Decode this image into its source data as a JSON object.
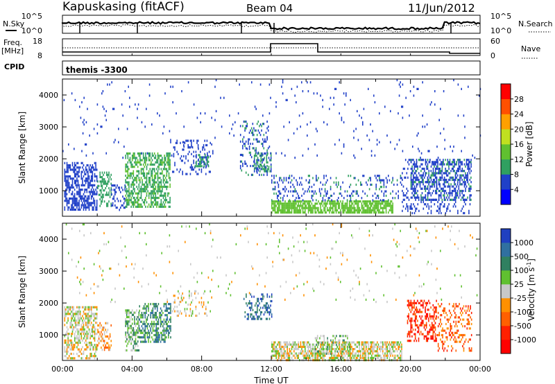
{
  "header": {
    "station": "Kapuskasing (fitACF)",
    "beam": "Beam 04",
    "date": "11/Jun/2012"
  },
  "top_panels": {
    "nsky_label": "N.Sky",
    "nsearch_label": "N.Search",
    "freq_label_1": "Freq.",
    "freq_label_2": "[MHz]",
    "nave_label": "Nave",
    "cpid_label": "CPID",
    "cpid_value": "themis -3300",
    "noise_ticks": [
      "10^5",
      "10^0"
    ],
    "freq_ticks": [
      "18",
      "8"
    ],
    "nave_ticks": [
      "60",
      "0"
    ]
  },
  "chart_data": [
    {
      "type": "heatmap",
      "title": "",
      "xlabel": "",
      "ylabel": "Slant Range [km]",
      "x_ticks": [
        "00:00",
        "04:00",
        "08:00",
        "12:00",
        "16:00",
        "20:00",
        "00:00"
      ],
      "y_ticks": [
        "1000",
        "2000",
        "3000",
        "4000"
      ],
      "ylim": [
        200,
        4500
      ],
      "colorbar": {
        "label": "Power [dB]",
        "ticks": [
          "4",
          "8",
          "12",
          "16",
          "20",
          "24",
          "28"
        ],
        "range": [
          0,
          32
        ],
        "colors": [
          "#0000ff",
          "#2040c8",
          "#30a060",
          "#60c030",
          "#c0e020",
          "#ffa000",
          "#ff5000",
          "#ff0000"
        ]
      },
      "regions": [
        {
          "t": [
            0.1,
            2.0
          ],
          "r": [
            400,
            1900
          ],
          "dens": 0.55,
          "value": 6
        },
        {
          "t": [
            2.0,
            2.8
          ],
          "r": [
            500,
            1600
          ],
          "dens": 0.35,
          "value": 10
        },
        {
          "t": [
            2.8,
            3.6
          ],
          "r": [
            400,
            1200
          ],
          "dens": 0.3,
          "value": 6
        },
        {
          "t": [
            3.6,
            6.2
          ],
          "r": [
            500,
            2200
          ],
          "dens": 0.55,
          "value": 11
        },
        {
          "t": [
            6.3,
            8.5
          ],
          "r": [
            1500,
            2600
          ],
          "dens": 0.18,
          "value": 6
        },
        {
          "t": [
            7.6,
            8.4
          ],
          "r": [
            1800,
            2150
          ],
          "dens": 0.6,
          "value": 8
        },
        {
          "t": [
            10.2,
            11.8
          ],
          "r": [
            1500,
            3200
          ],
          "dens": 0.2,
          "value": 7
        },
        {
          "t": [
            11.0,
            12.0
          ],
          "r": [
            1600,
            2200
          ],
          "dens": 0.55,
          "value": 8
        },
        {
          "t": [
            12.0,
            19.0
          ],
          "r": [
            300,
            700
          ],
          "dens": 0.75,
          "value": 13
        },
        {
          "t": [
            12.0,
            19.5
          ],
          "r": [
            700,
            1500
          ],
          "dens": 0.2,
          "value": 7
        },
        {
          "t": [
            19.5,
            23.5
          ],
          "r": [
            300,
            2000
          ],
          "dens": 0.2,
          "value": 6
        },
        {
          "t": [
            20.0,
            23.5
          ],
          "r": [
            700,
            2000
          ],
          "dens": 0.35,
          "value": 7
        },
        {
          "t": [
            0.0,
            24.0
          ],
          "r": [
            2000,
            4500
          ],
          "dens": 0.02,
          "value": 6
        }
      ]
    },
    {
      "type": "heatmap",
      "title": "",
      "xlabel": "Time UT",
      "ylabel": "Slant Range [km]",
      "x_ticks": [
        "00:00",
        "04:00",
        "08:00",
        "12:00",
        "16:00",
        "20:00",
        "00:00"
      ],
      "y_ticks": [
        "1000",
        "2000",
        "3000",
        "4000"
      ],
      "ylim": [
        200,
        4500
      ],
      "colorbar": {
        "label": "Velocity [m s^-1]",
        "ticks": [
          "1000",
          "500",
          "100",
          "25",
          "-25",
          "-100",
          "-500",
          "-1000"
        ],
        "colors": [
          "#2040c0",
          "#3070a0",
          "#308060",
          "#60c030",
          "#c8c8c8",
          "#ff9000",
          "#ff6000",
          "#ff2000",
          "#ff0000"
        ]
      },
      "regions": [
        {
          "t": [
            0.1,
            2.0
          ],
          "r": [
            300,
            1900
          ],
          "dens": 0.5,
          "value": 4
        },
        {
          "t": [
            2.0,
            2.8
          ],
          "r": [
            500,
            1400
          ],
          "dens": 0.35,
          "value": 5
        },
        {
          "t": [
            3.6,
            4.4
          ],
          "r": [
            500,
            1800
          ],
          "dens": 0.5,
          "value": 3
        },
        {
          "t": [
            4.4,
            6.2
          ],
          "r": [
            800,
            2000
          ],
          "dens": 0.5,
          "value": 2
        },
        {
          "t": [
            6.3,
            8.5
          ],
          "r": [
            1600,
            2400
          ],
          "dens": 0.2,
          "value": 4
        },
        {
          "t": [
            10.4,
            12.0
          ],
          "r": [
            1500,
            2300
          ],
          "dens": 0.35,
          "value": 1
        },
        {
          "t": [
            12.0,
            19.5
          ],
          "r": [
            200,
            800
          ],
          "dens": 0.65,
          "value": 4
        },
        {
          "t": [
            14.5,
            16.5
          ],
          "r": [
            400,
            1000
          ],
          "dens": 0.3,
          "value": 3
        },
        {
          "t": [
            19.8,
            21.5
          ],
          "r": [
            800,
            2100
          ],
          "dens": 0.4,
          "value": 7
        },
        {
          "t": [
            21.5,
            23.5
          ],
          "r": [
            500,
            2000
          ],
          "dens": 0.25,
          "value": 6
        },
        {
          "t": [
            0.0,
            24.0
          ],
          "r": [
            2000,
            4500
          ],
          "dens": 0.02,
          "value": 4
        }
      ]
    }
  ]
}
